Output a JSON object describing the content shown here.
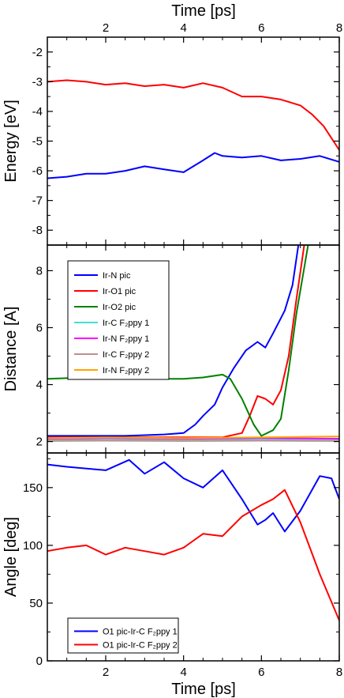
{
  "chart_data": [
    {
      "type": "line",
      "panel": "energy",
      "xlabel": "Time [ps]",
      "ylabel": "Energy [eV]",
      "xlim": [
        0.5,
        8
      ],
      "ylim": [
        -8.5,
        -1.5
      ],
      "xticks": [
        2,
        4,
        6,
        8
      ],
      "yticks": [
        -8,
        -7,
        -6,
        -5,
        -4,
        -3,
        -2
      ],
      "ytick_labels": [
        "-8",
        "-7",
        "-6",
        "-5",
        "-4",
        "-3",
        "-2"
      ],
      "xticks_top_labels": [
        "2",
        "4",
        "6",
        "8"
      ],
      "legend": "none",
      "grid": false,
      "series": [
        {
          "color": "#ff0000",
          "x": [
            0.5,
            1.0,
            1.5,
            2.0,
            2.5,
            3.0,
            3.5,
            4.0,
            4.5,
            5.0,
            5.5,
            6.0,
            6.5,
            7.0,
            7.3,
            7.6,
            7.8,
            8.0
          ],
          "y": [
            -3.0,
            -2.95,
            -3.0,
            -3.1,
            -3.05,
            -3.15,
            -3.1,
            -3.2,
            -3.05,
            -3.2,
            -3.5,
            -3.5,
            -3.6,
            -3.8,
            -4.1,
            -4.5,
            -4.9,
            -5.3
          ]
        },
        {
          "color": "#0000ff",
          "x": [
            0.5,
            1.0,
            1.5,
            2.0,
            2.5,
            3.0,
            3.5,
            4.0,
            4.5,
            4.8,
            5.0,
            5.5,
            6.0,
            6.5,
            7.0,
            7.5,
            8.0
          ],
          "y": [
            -6.25,
            -6.2,
            -6.1,
            -6.1,
            -6.0,
            -5.85,
            -5.95,
            -6.05,
            -5.65,
            -5.4,
            -5.5,
            -5.55,
            -5.5,
            -5.65,
            -5.6,
            -5.5,
            -5.7
          ]
        }
      ]
    },
    {
      "type": "line",
      "panel": "distance",
      "ylabel": "Distance [A]",
      "xlim": [
        0.5,
        8
      ],
      "ylim": [
        1.6,
        8.9
      ],
      "xticks": [
        2,
        4,
        6,
        8
      ],
      "yticks": [
        2,
        4,
        6,
        8
      ],
      "ytick_labels": [
        "2",
        "4",
        "6",
        "8"
      ],
      "legend": "top-left",
      "grid": false,
      "series": [
        {
          "name": "Ir-N pic",
          "color": "#0000ff",
          "x": [
            0.5,
            1.5,
            2.5,
            3.5,
            4.0,
            4.3,
            4.5,
            4.8,
            5.0,
            5.3,
            5.6,
            5.9,
            6.1,
            6.3,
            6.6,
            6.8,
            6.95
          ],
          "y": [
            2.2,
            2.2,
            2.2,
            2.25,
            2.3,
            2.6,
            2.9,
            3.3,
            3.9,
            4.6,
            5.2,
            5.5,
            5.3,
            5.8,
            6.6,
            7.5,
            8.9
          ]
        },
        {
          "name": "Ir-O1 pic",
          "color": "#ff0000",
          "x": [
            0.5,
            2.0,
            3.5,
            5.0,
            5.5,
            5.7,
            5.9,
            6.1,
            6.3,
            6.5,
            6.7,
            6.9,
            7.1
          ],
          "y": [
            2.15,
            2.15,
            2.15,
            2.15,
            2.3,
            2.9,
            3.6,
            3.5,
            3.3,
            3.8,
            5.0,
            7.0,
            8.9
          ]
        },
        {
          "name": "Ir-O2 pic",
          "color": "#008000",
          "x": [
            0.5,
            1.5,
            2.5,
            3.5,
            4.0,
            4.5,
            5.0,
            5.2,
            5.5,
            5.8,
            6.0,
            6.3,
            6.5,
            6.7,
            6.9,
            7.2
          ],
          "y": [
            4.2,
            4.25,
            4.2,
            4.2,
            4.2,
            4.25,
            4.35,
            4.2,
            3.5,
            2.6,
            2.2,
            2.4,
            2.8,
            4.5,
            6.5,
            8.9
          ]
        },
        {
          "name": "Ir-C F₂ppy 1",
          "color": "#40e0d0",
          "x": [
            0.5,
            2.0,
            4.0,
            6.0,
            8.0
          ],
          "y": [
            2.05,
            2.06,
            2.05,
            2.06,
            2.05
          ]
        },
        {
          "name": "Ir-N F₂ppy 1",
          "color": "#ff00ff",
          "x": [
            0.5,
            2.0,
            4.0,
            6.0,
            8.0
          ],
          "y": [
            2.1,
            2.12,
            2.1,
            2.12,
            2.1
          ]
        },
        {
          "name": "Ir-C F₂ppy 2",
          "color": "#bc8f8f",
          "x": [
            0.5,
            2.0,
            4.0,
            6.0,
            8.0
          ],
          "y": [
            2.02,
            2.03,
            2.02,
            2.03,
            2.02
          ]
        },
        {
          "name": "Ir-N F₂ppy 2",
          "color": "#ffa500",
          "x": [
            0.5,
            2.0,
            4.0,
            6.0,
            8.0
          ],
          "y": [
            2.12,
            2.14,
            2.12,
            2.15,
            2.18
          ]
        }
      ]
    },
    {
      "type": "line",
      "panel": "angle",
      "xlabel": "Time [ps]",
      "ylabel": "Angle [deg]",
      "xlim": [
        0.5,
        8
      ],
      "ylim": [
        0,
        180
      ],
      "xticks": [
        2,
        4,
        6,
        8
      ],
      "xtick_labels": [
        "2",
        "4",
        "6",
        "8"
      ],
      "yticks": [
        0,
        50,
        100,
        150
      ],
      "ytick_labels": [
        "0",
        "50",
        "100",
        "150"
      ],
      "legend": "bottom-left",
      "grid": false,
      "series": [
        {
          "name": "O1 pic-Ir-C F₂ppy 1",
          "color": "#0000ff",
          "x": [
            0.5,
            1.0,
            2.0,
            2.6,
            3.0,
            3.5,
            4.0,
            4.5,
            5.0,
            5.5,
            5.9,
            6.1,
            6.3,
            6.6,
            7.0,
            7.5,
            7.8,
            8.0
          ],
          "y": [
            170,
            168,
            165,
            174,
            162,
            172,
            158,
            150,
            165,
            140,
            118,
            122,
            128,
            112,
            130,
            160,
            158,
            140
          ]
        },
        {
          "name": "O1 pic-Ir-C F₂ppy 2",
          "color": "#ff0000",
          "x": [
            0.5,
            1.0,
            1.5,
            2.0,
            2.5,
            3.0,
            3.5,
            4.0,
            4.5,
            5.0,
            5.5,
            6.0,
            6.3,
            6.6,
            7.0,
            7.5,
            8.0
          ],
          "y": [
            95,
            98,
            100,
            92,
            98,
            95,
            92,
            98,
            110,
            108,
            125,
            135,
            140,
            148,
            120,
            75,
            35
          ]
        }
      ]
    }
  ]
}
